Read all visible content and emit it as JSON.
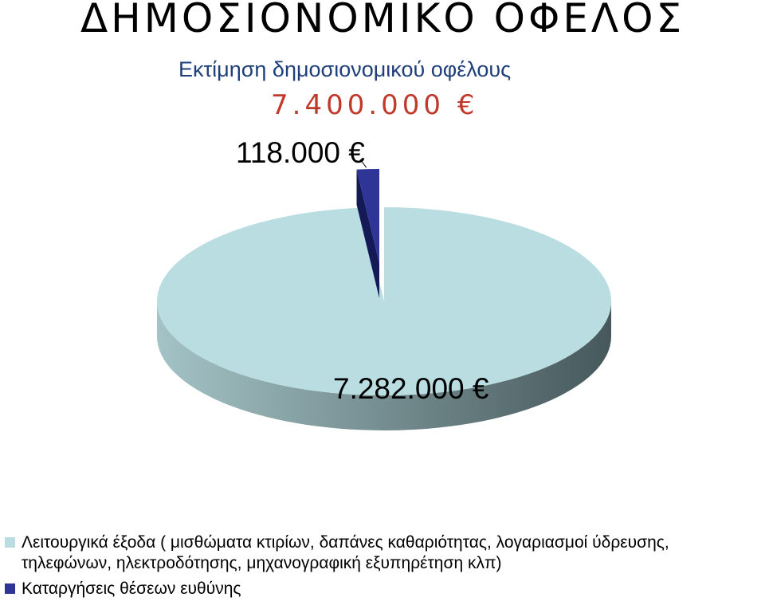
{
  "title": "ΔΗΜΟΣΙΟΝΟΜΙΚΟ ΟΦΕΛΟΣ",
  "subtitle": "Εκτίμηση δημοσιονομικού οφέλους",
  "total_label": "7.400.000 €",
  "colors": {
    "operating_top": "#b9dde0",
    "operating_side_light": "#a4c3c6",
    "operating_side_dark": "#46585b",
    "abolished_top": "#2e3596",
    "abolished_side": "#141a55"
  },
  "chart_data": {
    "type": "pie",
    "title": "",
    "three_d": true,
    "slices": [
      {
        "name": "Λειτουργικά έξοδα ( μισθώματα κτιρίων, δαπάνες καθαριότητας, λογαριασμοί ύδρευσης, τηλεφώνων, ηλεκτροδότησης, μηχανογραφική εξυπηρέτηση κλπ)",
        "value": 7282000,
        "label": "7.282.000 €",
        "color": "#b9dde0"
      },
      {
        "name": "Καταργήσεις θέσεων ευθύνης",
        "value": 118000,
        "label": "118.000 €",
        "color": "#2e3596",
        "exploded": true
      }
    ],
    "legend_position": "bottom"
  }
}
